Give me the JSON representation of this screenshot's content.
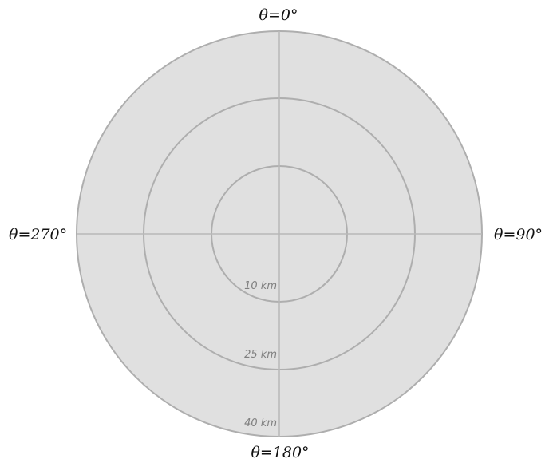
{
  "diagram": {
    "angle_labels": {
      "top": "θ=0°",
      "right": "θ=90°",
      "bottom": "θ=180°",
      "left": "θ=270°"
    },
    "rings": [
      {
        "label": "10 km",
        "radius_km": 10
      },
      {
        "label": "25 km",
        "radius_km": 25
      },
      {
        "label": "40 km",
        "radius_km": 40
      }
    ],
    "colors": {
      "disc_fill": "#e0e0e0",
      "ring_stroke": "#aeaeae",
      "axis_stroke": "#b8b8b8",
      "ring_label": "#808080",
      "angle_label": "#111111"
    }
  }
}
